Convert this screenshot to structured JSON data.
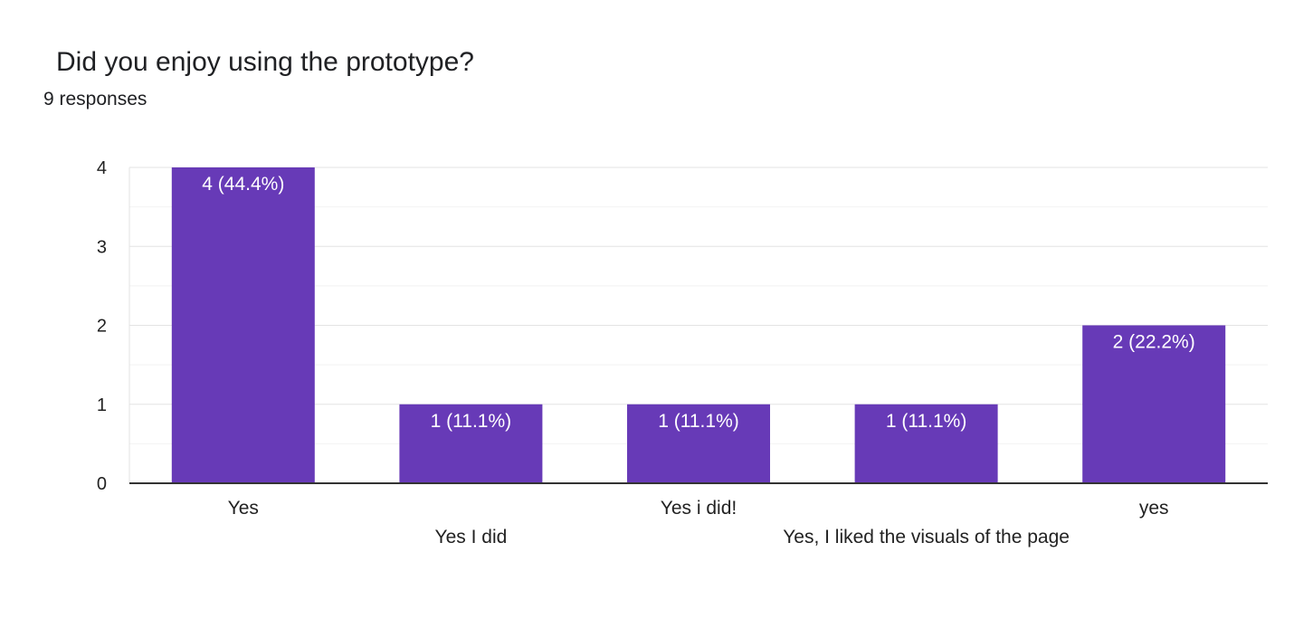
{
  "title": "Did you enjoy using the prototype?",
  "responses": "9 responses",
  "colors": {
    "bar": "#673ab7"
  },
  "chart_data": {
    "type": "bar",
    "categories": [
      "Yes",
      "Yes I did",
      "Yes i did!",
      "Yes, I liked the visuals of the page",
      "yes"
    ],
    "values": [
      4,
      1,
      1,
      1,
      2
    ],
    "data_labels": [
      "4 (44.4%)",
      "1 (11.1%)",
      "1 (11.1%)",
      "1 (11.1%)",
      "2 (22.2%)"
    ],
    "yticks": [
      0,
      1,
      2,
      3,
      4
    ],
    "ylim": [
      0,
      4
    ],
    "grid": true,
    "legend": "none"
  }
}
